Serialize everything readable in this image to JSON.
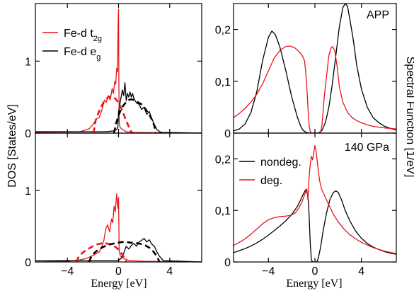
{
  "figure": {
    "left_ylabel": "DOS [States/eV]",
    "right_ylabel": "Spectral Function [1/eV]",
    "left_xlabel": "Energy [eV]",
    "right_xlabel": "Energy [eV]"
  },
  "colors": {
    "red": "#e8141b",
    "black": "#000000"
  },
  "chart_data": [
    {
      "id": "left_top",
      "type": "line",
      "xlim": [
        -6.5,
        6.5
      ],
      "ylim": [
        0,
        1.8
      ],
      "xticks": [
        -4,
        0,
        4
      ],
      "yticks": [
        0,
        1
      ],
      "ytick_labels": [
        "0",
        "1"
      ],
      "legend": {
        "position": "top-left",
        "entries": [
          {
            "base": "Fe-d t",
            "sub": "2g",
            "color": "#e8141b"
          },
          {
            "base": "Fe-d e",
            "sub": "g",
            "color": "#000000"
          }
        ]
      },
      "series": [
        {
          "color": "#e8141b",
          "style": "solid",
          "x": [
            -6.5,
            -3.0,
            -2.3,
            -2.0,
            -1.7,
            -1.5,
            -1.3,
            -1.1,
            -0.95,
            -0.8,
            -0.65,
            -0.5,
            -0.4,
            -0.3,
            -0.22,
            -0.15,
            -0.08,
            -0.03,
            0.0,
            0.03,
            0.06,
            0.12,
            0.3,
            0.6,
            1.2,
            6.5
          ],
          "y": [
            0.01,
            0.02,
            0.06,
            0.12,
            0.2,
            0.22,
            0.32,
            0.46,
            0.43,
            0.52,
            0.46,
            0.62,
            0.55,
            0.72,
            0.68,
            0.9,
            0.85,
            1.55,
            1.72,
            0.6,
            0.14,
            0.08,
            0.05,
            0.02,
            0.01,
            0.0
          ]
        },
        {
          "color": "#000000",
          "style": "solid",
          "x": [
            -6.5,
            -2.0,
            -1.0,
            -0.4,
            -0.15,
            -0.05,
            0.0,
            0.05,
            0.1,
            0.2,
            0.3,
            0.4,
            0.5,
            0.6,
            0.7,
            0.8,
            0.9,
            1.0,
            1.1,
            1.2,
            1.4,
            1.6,
            1.8,
            2.0,
            2.2,
            2.4,
            2.6,
            2.8,
            3.0,
            3.2,
            3.4,
            6.5
          ],
          "y": [
            0.02,
            0.02,
            0.02,
            0.03,
            0.05,
            0.08,
            0.3,
            0.35,
            0.4,
            0.5,
            0.6,
            0.52,
            0.7,
            0.45,
            0.55,
            0.5,
            0.57,
            0.5,
            0.55,
            0.48,
            0.42,
            0.4,
            0.33,
            0.36,
            0.26,
            0.3,
            0.2,
            0.12,
            0.05,
            0.02,
            0.01,
            0.0
          ]
        },
        {
          "color": "#e8141b",
          "style": "dashed",
          "x": [
            -1.95,
            -1.8,
            -1.6,
            -1.4,
            -1.2,
            -1.0,
            -0.8,
            -0.6,
            -0.4,
            -0.2,
            0.0,
            0.15,
            0.3,
            0.45,
            0.6,
            0.75,
            0.9,
            1.0,
            1.05
          ],
          "y": [
            0.0,
            0.17,
            0.27,
            0.35,
            0.42,
            0.46,
            0.5,
            0.51,
            0.5,
            0.47,
            0.42,
            0.37,
            0.31,
            0.24,
            0.17,
            0.11,
            0.05,
            0.02,
            0.0
          ]
        },
        {
          "color": "#000000",
          "style": "dashed",
          "x": [
            -0.35,
            -0.2,
            0.0,
            0.2,
            0.4,
            0.6,
            0.8,
            1.0,
            1.2,
            1.4,
            1.6,
            1.8,
            2.0,
            2.2,
            2.4,
            2.6,
            2.8,
            2.9
          ],
          "y": [
            0.0,
            0.13,
            0.25,
            0.33,
            0.39,
            0.43,
            0.46,
            0.47,
            0.46,
            0.44,
            0.42,
            0.4,
            0.36,
            0.31,
            0.26,
            0.19,
            0.1,
            0.0
          ]
        }
      ]
    },
    {
      "id": "left_bottom",
      "type": "line",
      "xlim": [
        -6.5,
        6.5
      ],
      "ylim": [
        0,
        1.8
      ],
      "xticks": [
        -4,
        0,
        4
      ],
      "xtick_labels": [
        "-4",
        "0",
        "4"
      ],
      "yticks": [
        0,
        1
      ],
      "ytick_labels": [
        "0",
        "1"
      ],
      "series": [
        {
          "color": "#e8141b",
          "style": "solid",
          "x": [
            -6.5,
            -4.0,
            -3.0,
            -2.5,
            -2.0,
            -1.7,
            -1.5,
            -1.3,
            -1.15,
            -1.0,
            -0.85,
            -0.7,
            -0.55,
            -0.45,
            -0.35,
            -0.25,
            -0.15,
            -0.05,
            0.0,
            0.05,
            0.15,
            0.4,
            0.8,
            2.0,
            6.5
          ],
          "y": [
            0.0,
            0.01,
            0.03,
            0.05,
            0.09,
            0.12,
            0.14,
            0.22,
            0.3,
            0.46,
            0.52,
            0.42,
            0.6,
            0.55,
            0.78,
            0.7,
            0.95,
            0.75,
            0.9,
            0.15,
            0.08,
            0.05,
            0.02,
            0.01,
            0.0
          ]
        },
        {
          "color": "#000000",
          "style": "solid",
          "x": [
            -6.5,
            -2.5,
            -1.5,
            -0.8,
            -0.3,
            0.0,
            0.2,
            0.4,
            0.6,
            0.8,
            1.0,
            1.2,
            1.4,
            1.6,
            1.8,
            2.0,
            2.2,
            2.4,
            2.6,
            2.8,
            3.0,
            3.2,
            3.5,
            6.5
          ],
          "y": [
            0.02,
            0.02,
            0.02,
            0.02,
            0.02,
            0.02,
            0.05,
            0.12,
            0.22,
            0.18,
            0.23,
            0.26,
            0.22,
            0.28,
            0.3,
            0.33,
            0.28,
            0.31,
            0.25,
            0.22,
            0.14,
            0.08,
            0.02,
            0.0
          ]
        },
        {
          "color": "#e8141b",
          "style": "dashed",
          "x": [
            -3.3,
            -3.1,
            -2.8,
            -2.5,
            -2.2,
            -1.9,
            -1.6,
            -1.3,
            -1.0,
            -0.7,
            -0.4,
            -0.1,
            0.1,
            0.3,
            0.5,
            0.6
          ],
          "y": [
            0.0,
            0.08,
            0.13,
            0.17,
            0.2,
            0.23,
            0.25,
            0.26,
            0.26,
            0.25,
            0.23,
            0.19,
            0.15,
            0.1,
            0.05,
            0.0
          ]
        },
        {
          "color": "#000000",
          "style": "dashed",
          "x": [
            -2.3,
            -2.1,
            -1.8,
            -1.5,
            -1.2,
            -0.9,
            -0.6,
            -0.3,
            0.0,
            0.3,
            0.6,
            0.9,
            1.2,
            1.5,
            1.8,
            2.1,
            2.4,
            2.7,
            3.0,
            3.2
          ],
          "y": [
            0.0,
            0.09,
            0.14,
            0.18,
            0.21,
            0.23,
            0.25,
            0.26,
            0.27,
            0.28,
            0.28,
            0.27,
            0.27,
            0.26,
            0.25,
            0.23,
            0.2,
            0.15,
            0.08,
            0.0
          ]
        }
      ]
    },
    {
      "id": "right_top",
      "type": "line",
      "xlim": [
        -7,
        7
      ],
      "ylim": [
        0,
        0.25
      ],
      "xticks": [
        -4,
        0,
        4
      ],
      "yticks": [
        0,
        0.1,
        0.2
      ],
      "ytick_labels": [
        "0",
        "0,1",
        "0,2"
      ],
      "annotation": "APP",
      "series": [
        {
          "color": "#000000",
          "style": "solid",
          "x": [
            -7,
            -6.5,
            -6,
            -5.5,
            -5,
            -4.5,
            -4,
            -3.7,
            -3.4,
            -3,
            -2.5,
            -2,
            -1.5,
            -1.2,
            -1,
            -0.7,
            -0.5,
            -0.2,
            0,
            0.3,
            0.6,
            0.9,
            1.2,
            1.5,
            1.8,
            2.1,
            2.4,
            2.6,
            2.8,
            3.0,
            3.3,
            3.6,
            4,
            4.5,
            5,
            5.5,
            6,
            6.5,
            7
          ],
          "y": [
            0.004,
            0.008,
            0.018,
            0.04,
            0.08,
            0.14,
            0.185,
            0.197,
            0.19,
            0.165,
            0.12,
            0.07,
            0.03,
            0.012,
            0.005,
            0.001,
            0.0,
            0.0,
            0.0,
            0.0,
            0.005,
            0.02,
            0.05,
            0.095,
            0.15,
            0.205,
            0.242,
            0.25,
            0.245,
            0.22,
            0.18,
            0.13,
            0.085,
            0.05,
            0.03,
            0.02,
            0.013,
            0.009,
            0.006
          ]
        },
        {
          "color": "#e8141b",
          "style": "solid",
          "x": [
            -7,
            -6.5,
            -6,
            -5.5,
            -5,
            -4.5,
            -4,
            -3.5,
            -3,
            -2.5,
            -2.2,
            -2,
            -1.7,
            -1.4,
            -1.1,
            -0.9,
            -0.8,
            -0.7,
            -0.6,
            -0.5,
            -0.4,
            -0.3,
            -0.2,
            0,
            0.2,
            0.3,
            0.4,
            0.5,
            0.6,
            0.7,
            0.8,
            0.9,
            1.0,
            1.1,
            1.2,
            1.4,
            1.5,
            1.7,
            1.9,
            2.1,
            2.4,
            2.8,
            3.2,
            3.6,
            4,
            4.5,
            5,
            6,
            7
          ],
          "y": [
            0.03,
            0.038,
            0.048,
            0.06,
            0.075,
            0.095,
            0.12,
            0.145,
            0.16,
            0.167,
            0.168,
            0.167,
            0.164,
            0.158,
            0.15,
            0.14,
            0.12,
            0.09,
            0.05,
            0.015,
            0.003,
            0.0,
            0.0,
            0.0,
            0.0,
            0.0,
            0.0,
            0.003,
            0.015,
            0.04,
            0.07,
            0.09,
            0.11,
            0.13,
            0.15,
            0.165,
            0.167,
            0.16,
            0.13,
            0.09,
            0.06,
            0.04,
            0.03,
            0.024,
            0.02,
            0.016,
            0.013,
            0.01,
            0.008
          ]
        }
      ]
    },
    {
      "id": "right_bottom",
      "type": "line",
      "xlim": [
        -7,
        7
      ],
      "ylim": [
        0,
        0.25
      ],
      "xticks": [
        -4,
        0,
        4
      ],
      "xtick_labels": [
        "-4",
        "0",
        "4"
      ],
      "yticks": [
        0,
        0.1,
        0.2
      ],
      "ytick_labels": [
        "0",
        "0,1",
        "0,2"
      ],
      "annotation": "140 GPa",
      "legend": {
        "position": "top-left",
        "entries": [
          {
            "base": "nondeg.",
            "sub": "",
            "color": "#000000"
          },
          {
            "base": "deg.",
            "sub": "",
            "color": "#e8141b"
          }
        ]
      },
      "series": [
        {
          "color": "#000000",
          "style": "solid",
          "x": [
            -7,
            -6.5,
            -6,
            -5.5,
            -5,
            -4.5,
            -4,
            -3.5,
            -3,
            -2.5,
            -2,
            -1.5,
            -1.2,
            -1,
            -0.8,
            -0.6,
            -0.5,
            -0.4,
            -0.3,
            -0.2,
            -0.1,
            0,
            0.1,
            0.2,
            0.3,
            0.5,
            0.7,
            1.0,
            1.3,
            1.6,
            1.8,
            2.0,
            2.3,
            2.6,
            3.0,
            3.5,
            4,
            4.5,
            5,
            5.5,
            6,
            6.5,
            7
          ],
          "y": [
            0.018,
            0.022,
            0.026,
            0.031,
            0.037,
            0.044,
            0.052,
            0.061,
            0.07,
            0.08,
            0.092,
            0.108,
            0.122,
            0.132,
            0.14,
            0.13,
            0.09,
            0.035,
            0.004,
            0.0,
            0.0,
            0.0,
            0.0,
            0.002,
            0.008,
            0.03,
            0.06,
            0.095,
            0.122,
            0.135,
            0.138,
            0.135,
            0.12,
            0.1,
            0.08,
            0.06,
            0.046,
            0.036,
            0.029,
            0.024,
            0.02,
            0.017,
            0.015
          ]
        },
        {
          "color": "#e8141b",
          "style": "solid",
          "x": [
            -7,
            -6.5,
            -6,
            -5.5,
            -5,
            -4.5,
            -4,
            -3.5,
            -3,
            -2.5,
            -2,
            -1.7,
            -1.4,
            -1.1,
            -0.9,
            -0.7,
            -0.6,
            -0.5,
            -0.4,
            -0.3,
            -0.2,
            -0.1,
            0,
            0.1,
            0.2,
            0.3,
            0.4,
            0.5,
            0.6,
            0.8,
            1.0,
            1.3,
            1.6,
            2.0,
            2.5,
            3.0,
            3.5,
            4,
            5,
            6,
            7
          ],
          "y": [
            0.032,
            0.038,
            0.045,
            0.054,
            0.064,
            0.074,
            0.082,
            0.086,
            0.088,
            0.089,
            0.091,
            0.095,
            0.104,
            0.117,
            0.13,
            0.142,
            0.12,
            0.165,
            0.19,
            0.205,
            0.198,
            0.212,
            0.226,
            0.215,
            0.195,
            0.175,
            0.158,
            0.148,
            0.14,
            0.13,
            0.12,
            0.106,
            0.092,
            0.078,
            0.064,
            0.053,
            0.045,
            0.038,
            0.028,
            0.021,
            0.016
          ]
        }
      ]
    }
  ]
}
